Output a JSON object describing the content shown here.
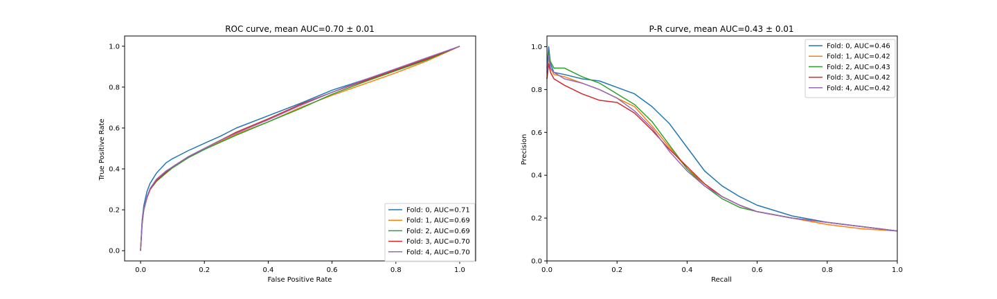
{
  "colors": {
    "fold0": "#1f77b4",
    "fold1": "#ff7f0e",
    "fold2": "#2ca02c",
    "fold3": "#d62728",
    "fold4": "#9467bd"
  },
  "chart_data": [
    {
      "type": "line",
      "title": "ROC curve, mean AUC=0.70 ± 0.01",
      "xlabel": "False Positive Rate",
      "ylabel": "True Positive Rate",
      "xlim": [
        -0.05,
        1.05
      ],
      "ylim": [
        -0.05,
        1.05
      ],
      "xticks": [
        0.0,
        0.2,
        0.4,
        0.6,
        0.8,
        1.0
      ],
      "yticks": [
        0.0,
        0.2,
        0.4,
        0.6,
        0.8,
        1.0
      ],
      "xtick_labels": [
        "0.0",
        "0.2",
        "0.4",
        "0.6",
        "0.8",
        "1.0"
      ],
      "ytick_labels": [
        "0.0",
        "0.2",
        "0.4",
        "0.6",
        "0.8",
        "1.0"
      ],
      "legend": "lower-right",
      "grid": false,
      "series": [
        {
          "name": "Fold: 0, AUC=0.71",
          "color": "#1f77b4",
          "x": [
            0,
            0.005,
            0.01,
            0.02,
            0.03,
            0.05,
            0.08,
            0.1,
            0.15,
            0.2,
            0.25,
            0.3,
            0.4,
            0.5,
            0.6,
            0.7,
            0.8,
            0.9,
            1.0
          ],
          "y": [
            0,
            0.15,
            0.22,
            0.29,
            0.33,
            0.38,
            0.43,
            0.45,
            0.49,
            0.525,
            0.56,
            0.6,
            0.66,
            0.72,
            0.785,
            0.835,
            0.885,
            0.94,
            1.0
          ]
        },
        {
          "name": "Fold: 1, AUC=0.69",
          "color": "#ff7f0e",
          "x": [
            0,
            0.005,
            0.01,
            0.02,
            0.03,
            0.05,
            0.08,
            0.1,
            0.15,
            0.2,
            0.25,
            0.3,
            0.4,
            0.5,
            0.6,
            0.7,
            0.8,
            0.9,
            1.0
          ],
          "y": [
            0,
            0.13,
            0.2,
            0.26,
            0.3,
            0.34,
            0.38,
            0.41,
            0.46,
            0.5,
            0.535,
            0.57,
            0.63,
            0.7,
            0.76,
            0.815,
            0.87,
            0.93,
            1.0
          ]
        },
        {
          "name": "Fold: 2, AUC=0.69",
          "color": "#2ca02c",
          "x": [
            0,
            0.005,
            0.01,
            0.02,
            0.03,
            0.05,
            0.08,
            0.1,
            0.15,
            0.2,
            0.25,
            0.3,
            0.4,
            0.5,
            0.6,
            0.7,
            0.8,
            0.9,
            1.0
          ],
          "y": [
            0,
            0.13,
            0.2,
            0.26,
            0.3,
            0.34,
            0.38,
            0.405,
            0.455,
            0.495,
            0.53,
            0.565,
            0.63,
            0.695,
            0.765,
            0.825,
            0.88,
            0.935,
            1.0
          ]
        },
        {
          "name": "Fold: 3, AUC=0.70",
          "color": "#d62728",
          "x": [
            0,
            0.005,
            0.01,
            0.02,
            0.03,
            0.05,
            0.08,
            0.1,
            0.15,
            0.2,
            0.25,
            0.3,
            0.4,
            0.5,
            0.6,
            0.7,
            0.8,
            0.9,
            1.0
          ],
          "y": [
            0,
            0.14,
            0.2,
            0.26,
            0.3,
            0.345,
            0.385,
            0.41,
            0.46,
            0.5,
            0.54,
            0.58,
            0.645,
            0.715,
            0.775,
            0.83,
            0.885,
            0.94,
            1.0
          ]
        },
        {
          "name": "Fold: 4, AUC=0.70",
          "color": "#9467bd",
          "x": [
            0,
            0.005,
            0.01,
            0.02,
            0.03,
            0.05,
            0.08,
            0.1,
            0.15,
            0.2,
            0.25,
            0.3,
            0.4,
            0.5,
            0.6,
            0.7,
            0.8,
            0.9,
            1.0
          ],
          "y": [
            0,
            0.14,
            0.2,
            0.265,
            0.305,
            0.35,
            0.39,
            0.41,
            0.46,
            0.5,
            0.54,
            0.575,
            0.64,
            0.71,
            0.775,
            0.835,
            0.89,
            0.945,
            1.0
          ]
        }
      ]
    },
    {
      "type": "line",
      "title": "P-R curve, mean AUC=0.43 ± 0.01",
      "xlabel": "Recall",
      "ylabel": "Precision",
      "xlim": [
        0.0,
        1.0
      ],
      "ylim": [
        0.0,
        1.05
      ],
      "xticks": [
        0.0,
        0.2,
        0.4,
        0.6,
        0.8,
        1.0
      ],
      "yticks": [
        0.0,
        0.2,
        0.4,
        0.6,
        0.8,
        1.0
      ],
      "xtick_labels": [
        "0.0",
        "0.2",
        "0.4",
        "0.6",
        "0.8",
        "1.0"
      ],
      "ytick_labels": [
        "0.0",
        "0.2",
        "0.4",
        "0.6",
        "0.8",
        "1.0"
      ],
      "legend": "top-right",
      "grid": false,
      "series": [
        {
          "name": "Fold: 0, AUC=0.46",
          "color": "#1f77b4",
          "x": [
            0,
            0.005,
            0.01,
            0.02,
            0.05,
            0.1,
            0.15,
            0.2,
            0.25,
            0.3,
            0.35,
            0.4,
            0.45,
            0.5,
            0.55,
            0.6,
            0.7,
            0.8,
            0.9,
            1.0
          ],
          "y": [
            0.9,
            1.0,
            0.92,
            0.88,
            0.87,
            0.85,
            0.84,
            0.81,
            0.78,
            0.72,
            0.64,
            0.53,
            0.42,
            0.35,
            0.3,
            0.26,
            0.21,
            0.18,
            0.16,
            0.14
          ]
        },
        {
          "name": "Fold: 1, AUC=0.42",
          "color": "#ff7f0e",
          "x": [
            0,
            0.005,
            0.01,
            0.02,
            0.05,
            0.1,
            0.15,
            0.2,
            0.25,
            0.3,
            0.35,
            0.4,
            0.45,
            0.5,
            0.55,
            0.6,
            0.7,
            0.8,
            0.9,
            1.0
          ],
          "y": [
            0.88,
            0.95,
            0.9,
            0.87,
            0.86,
            0.83,
            0.8,
            0.76,
            0.72,
            0.63,
            0.53,
            0.43,
            0.36,
            0.3,
            0.26,
            0.23,
            0.2,
            0.17,
            0.15,
            0.14
          ]
        },
        {
          "name": "Fold: 2, AUC=0.43",
          "color": "#2ca02c",
          "x": [
            0,
            0.005,
            0.01,
            0.02,
            0.05,
            0.1,
            0.15,
            0.2,
            0.25,
            0.3,
            0.35,
            0.4,
            0.45,
            0.5,
            0.55,
            0.6,
            0.7,
            0.8,
            0.9,
            1.0
          ],
          "y": [
            0.85,
            0.97,
            0.93,
            0.9,
            0.9,
            0.86,
            0.83,
            0.78,
            0.73,
            0.65,
            0.54,
            0.43,
            0.35,
            0.29,
            0.25,
            0.23,
            0.2,
            0.18,
            0.16,
            0.14
          ]
        },
        {
          "name": "Fold: 3, AUC=0.42",
          "color": "#d62728",
          "x": [
            0,
            0.005,
            0.01,
            0.02,
            0.05,
            0.1,
            0.15,
            0.2,
            0.25,
            0.3,
            0.35,
            0.4,
            0.45,
            0.5,
            0.55,
            0.6,
            0.7,
            0.8,
            0.9,
            1.0
          ],
          "y": [
            0.85,
            0.92,
            0.88,
            0.85,
            0.82,
            0.78,
            0.75,
            0.74,
            0.69,
            0.61,
            0.52,
            0.44,
            0.36,
            0.3,
            0.26,
            0.23,
            0.2,
            0.18,
            0.16,
            0.14
          ]
        },
        {
          "name": "Fold: 4, AUC=0.42",
          "color": "#9467bd",
          "x": [
            0,
            0.005,
            0.01,
            0.02,
            0.05,
            0.1,
            0.15,
            0.2,
            0.25,
            0.3,
            0.35,
            0.4,
            0.45,
            0.5,
            0.55,
            0.6,
            0.7,
            0.8,
            0.9,
            1.0
          ],
          "y": [
            0.88,
            0.96,
            0.9,
            0.88,
            0.85,
            0.83,
            0.8,
            0.76,
            0.7,
            0.62,
            0.51,
            0.42,
            0.35,
            0.3,
            0.26,
            0.23,
            0.2,
            0.18,
            0.16,
            0.14
          ]
        }
      ]
    }
  ]
}
